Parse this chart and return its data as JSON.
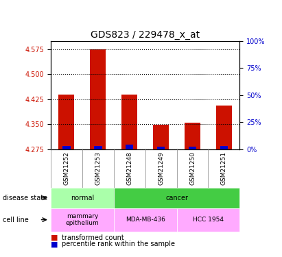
{
  "title": "GDS823 / 229478_x_at",
  "samples": [
    "GSM21252",
    "GSM21253",
    "GSM21248",
    "GSM21249",
    "GSM21250",
    "GSM21251"
  ],
  "transformed_counts": [
    4.44,
    4.575,
    4.44,
    4.348,
    4.355,
    4.405
  ],
  "percentile_ranks": [
    3,
    3,
    4,
    2,
    2,
    3
  ],
  "base_value": 4.275,
  "ylim_left": [
    4.275,
    4.6
  ],
  "ylim_right": [
    0,
    100
  ],
  "yticks_left": [
    4.275,
    4.35,
    4.425,
    4.5,
    4.575
  ],
  "yticks_right": [
    0,
    25,
    50,
    75,
    100
  ],
  "bar_color": "#cc1100",
  "percentile_color": "#0000cc",
  "disease_state_labels": [
    {
      "text": "normal",
      "span": [
        0,
        2
      ],
      "color": "#aaffaa"
    },
    {
      "text": "cancer",
      "span": [
        2,
        6
      ],
      "color": "#44cc44"
    }
  ],
  "cell_line_labels": [
    {
      "text": "mammary\nepithelium",
      "span": [
        0,
        2
      ],
      "color": "#ffaaff"
    },
    {
      "text": "MDA-MB-436",
      "span": [
        2,
        4
      ],
      "color": "#ffaaff"
    },
    {
      "text": "HCC 1954",
      "span": [
        4,
        6
      ],
      "color": "#ffaaff"
    }
  ],
  "legend_items": [
    {
      "color": "#cc1100",
      "label": "transformed count"
    },
    {
      "color": "#0000cc",
      "label": "percentile rank within the sample"
    }
  ],
  "row_labels": [
    "disease state",
    "cell line"
  ],
  "tick_label_fontsize": 7,
  "title_fontsize": 10,
  "axis_label_color_left": "#cc1100",
  "axis_label_color_right": "#0000cc"
}
